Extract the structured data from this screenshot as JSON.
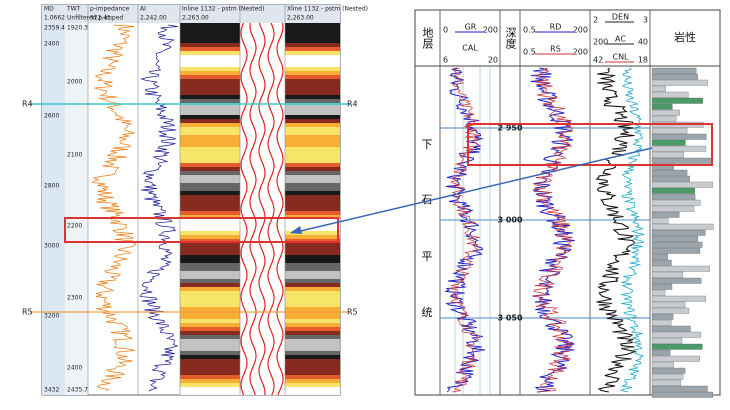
{
  "left": {
    "headers": [
      "MD",
      "TWT",
      "p-impedance",
      "AI",
      "Inline 1132 - pstm (Nested)",
      "Xline 1132 - pstm (Nested)"
    ],
    "subheaders": [
      "1.0662",
      "Unfiltered p-imped",
      "322.41",
      "2,242.00",
      "2,263.00",
      "2,263.00"
    ],
    "md_labels": [
      "2359.4",
      "2400",
      "2600",
      "2800",
      "3000",
      "3200",
      "3432"
    ],
    "twt_labels": [
      "1920.3",
      "2000",
      "2100",
      "2200",
      "2300",
      "2400",
      "2435.7"
    ],
    "markers": [
      "R4",
      "R4",
      "R5",
      "R5"
    ]
  },
  "right": {
    "headers": [
      "地层",
      "深度",
      "岩性"
    ],
    "gr": [
      "0",
      "GR",
      "200"
    ],
    "cal": [
      "CAL",
      "6",
      "20"
    ],
    "rd": [
      "0.5",
      "RD",
      "200"
    ],
    "rs": [
      "0.5",
      "RS",
      "200"
    ],
    "den": [
      "2",
      "DEN",
      "3"
    ],
    "ac": [
      "200",
      "AC",
      "40"
    ],
    "cnl": [
      "42",
      "CNL",
      "18"
    ],
    "strata": [
      "下",
      "石",
      "平",
      "统"
    ],
    "depths": [
      "2 950",
      "3 000",
      "3 050"
    ]
  }
}
